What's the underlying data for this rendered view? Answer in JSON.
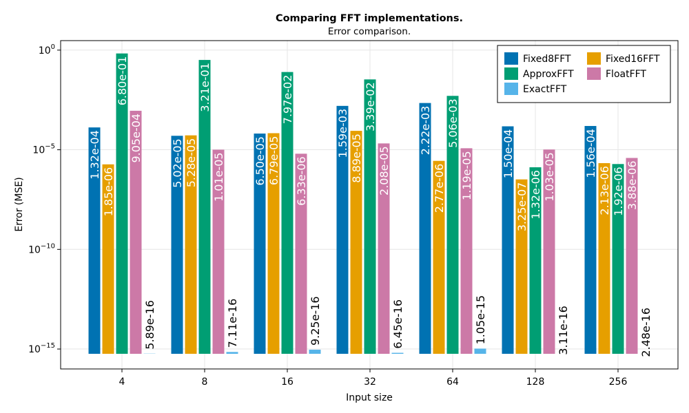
{
  "chart_data": {
    "type": "bar",
    "title": "Comparing FFT implementations.",
    "subtitle": "Error comparison.",
    "xlabel": "Input size",
    "ylabel": "Error (MSE)",
    "yscale": "log10",
    "ylim": [
      1e-16,
      3
    ],
    "y_ticks": [
      {
        "value": 1,
        "base": "10",
        "exp": "0"
      },
      {
        "value": 1e-05,
        "base": "10",
        "exp": "−5"
      },
      {
        "value": 1e-10,
        "base": "10",
        "exp": "−10"
      },
      {
        "value": 1e-15,
        "base": "10",
        "exp": "−15"
      }
    ],
    "categories": [
      "4",
      "8",
      "16",
      "32",
      "64",
      "128",
      "256"
    ],
    "series": [
      {
        "name": "Fixed8FFT",
        "color": "#0072B2",
        "values": [
          0.000132,
          5.02e-05,
          6.5e-05,
          0.00159,
          0.00222,
          0.00015,
          0.000156
        ],
        "labels": [
          "1.32e-04",
          "5.02e-05",
          "6.50e-05",
          "1.59e-03",
          "2.22e-03",
          "1.50e-04",
          "1.56e-04"
        ]
      },
      {
        "name": "Fixed16FFT",
        "color": "#E69F00",
        "values": [
          1.85e-06,
          5.28e-05,
          6.79e-05,
          8.89e-05,
          2.77e-06,
          3.25e-07,
          2.13e-06
        ],
        "labels": [
          "1.85e-06",
          "5.28e-05",
          "6.79e-05",
          "8.89e-05",
          "2.77e-06",
          "3.25e-07",
          "2.13e-06"
        ]
      },
      {
        "name": "ApproxFFT",
        "color": "#009E73",
        "values": [
          0.68,
          0.321,
          0.0797,
          0.0339,
          0.00506,
          1.32e-06,
          1.92e-06
        ],
        "labels": [
          "6.80e-01",
          "3.21e-01",
          "7.97e-02",
          "3.39e-02",
          "5.06e-03",
          "1.32e-06",
          "1.92e-06"
        ]
      },
      {
        "name": "FloatFFT",
        "color": "#CC79A7",
        "values": [
          0.000905,
          1.01e-05,
          6.33e-06,
          2.08e-05,
          1.19e-05,
          1.03e-05,
          3.88e-06
        ],
        "labels": [
          "9.05e-04",
          "1.01e-05",
          "6.33e-06",
          "2.08e-05",
          "1.19e-05",
          "1.03e-05",
          "3.88e-06"
        ]
      },
      {
        "name": "ExactFFT",
        "color": "#56B4E9",
        "values": [
          5.89e-16,
          7.11e-16,
          9.25e-16,
          6.45e-16,
          1.05e-15,
          3.11e-16,
          2.48e-16
        ],
        "labels": [
          "5.89e-16",
          "7.11e-16",
          "9.25e-16",
          "6.45e-16",
          "1.05e-15",
          "3.11e-16",
          "2.48e-16"
        ]
      }
    ],
    "legend": {
      "position": "top-right",
      "columns": 2,
      "entries": [
        "Fixed8FFT",
        "Fixed16FFT",
        "ApproxFFT",
        "FloatFFT",
        "ExactFFT"
      ]
    },
    "grid": true
  }
}
